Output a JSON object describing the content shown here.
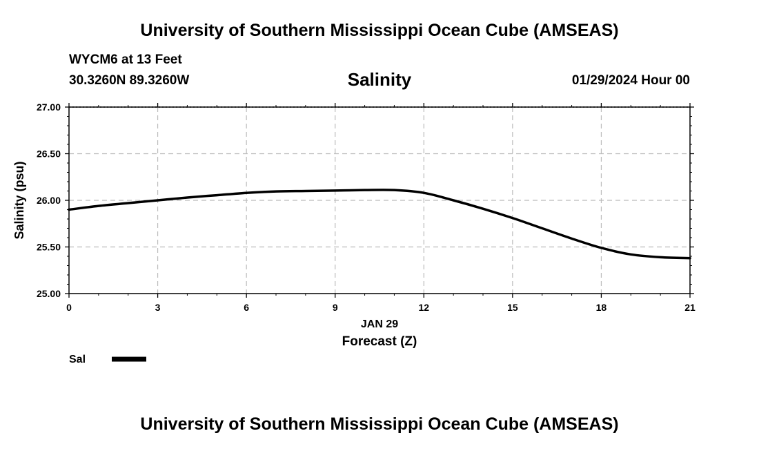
{
  "header": {
    "title": "University of Southern Mississippi Ocean Cube (AMSEAS)",
    "station": "WYCM6 at 13 Feet",
    "coords": "30.3260N  89.3260W",
    "datetime": "01/29/2024 Hour 00"
  },
  "footer": {
    "title": "University of Southern Mississippi Ocean Cube (AMSEAS)"
  },
  "legend": {
    "label": "Sal"
  },
  "colors": {
    "line": "#000000",
    "grid": "#bbbbbb"
  },
  "chart_data": {
    "type": "line",
    "title": "Salinity",
    "xlabel": "Forecast (Z)",
    "xsublabel": "JAN 29",
    "ylabel": "Salinity (psu)",
    "xlim": [
      0,
      21
    ],
    "ylim": [
      25.0,
      27.0
    ],
    "xticks": [
      0,
      3,
      6,
      9,
      12,
      15,
      18,
      21
    ],
    "yticks": [
      "25.00",
      "25.50",
      "26.00",
      "26.50",
      "27.00"
    ],
    "grid": true,
    "series": [
      {
        "name": "Sal",
        "x": [
          0,
          1,
          2,
          3,
          4,
          5,
          6,
          7,
          8,
          9,
          10,
          11,
          12,
          13,
          14,
          15,
          16,
          17,
          18,
          19,
          20,
          21
        ],
        "values": [
          25.9,
          25.94,
          25.97,
          26.0,
          26.03,
          26.055,
          26.08,
          26.095,
          26.1,
          26.105,
          26.11,
          26.11,
          26.08,
          26.0,
          25.91,
          25.81,
          25.7,
          25.59,
          25.49,
          25.42,
          25.39,
          25.38
        ]
      }
    ]
  }
}
